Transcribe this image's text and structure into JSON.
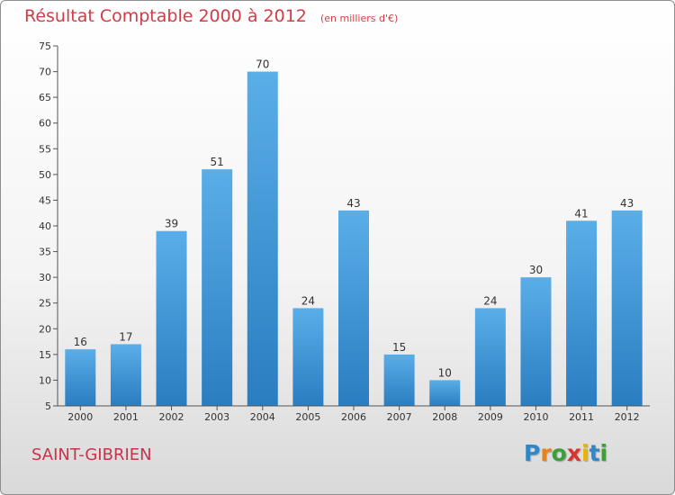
{
  "chart_data": {
    "type": "bar",
    "title": "Résultat Comptable 2000 à 2012",
    "subtitle": "(en milliers d'€)",
    "categories": [
      "2000",
      "2001",
      "2002",
      "2003",
      "2004",
      "2005",
      "2006",
      "2007",
      "2008",
      "2009",
      "2010",
      "2011",
      "2012"
    ],
    "values": [
      16,
      17,
      39,
      51,
      70,
      24,
      43,
      15,
      10,
      24,
      30,
      41,
      43
    ],
    "ylim": [
      5,
      75
    ],
    "yticks": [
      5,
      10,
      15,
      20,
      25,
      30,
      35,
      40,
      45,
      50,
      55,
      60,
      65,
      70,
      75
    ],
    "xlabel": "",
    "ylabel": "",
    "grid": false,
    "bar_color": "#3d94d6"
  },
  "commune": "SAINT-GIBRIEN",
  "logo": {
    "letters": [
      "P",
      "r",
      "o",
      "x",
      "i",
      "t",
      "i"
    ],
    "colors": [
      "#2f86c8",
      "#e8821e",
      "#3aa03a",
      "#d9342b",
      "#e8b400",
      "#2f86c8",
      "#3aa03a"
    ]
  }
}
